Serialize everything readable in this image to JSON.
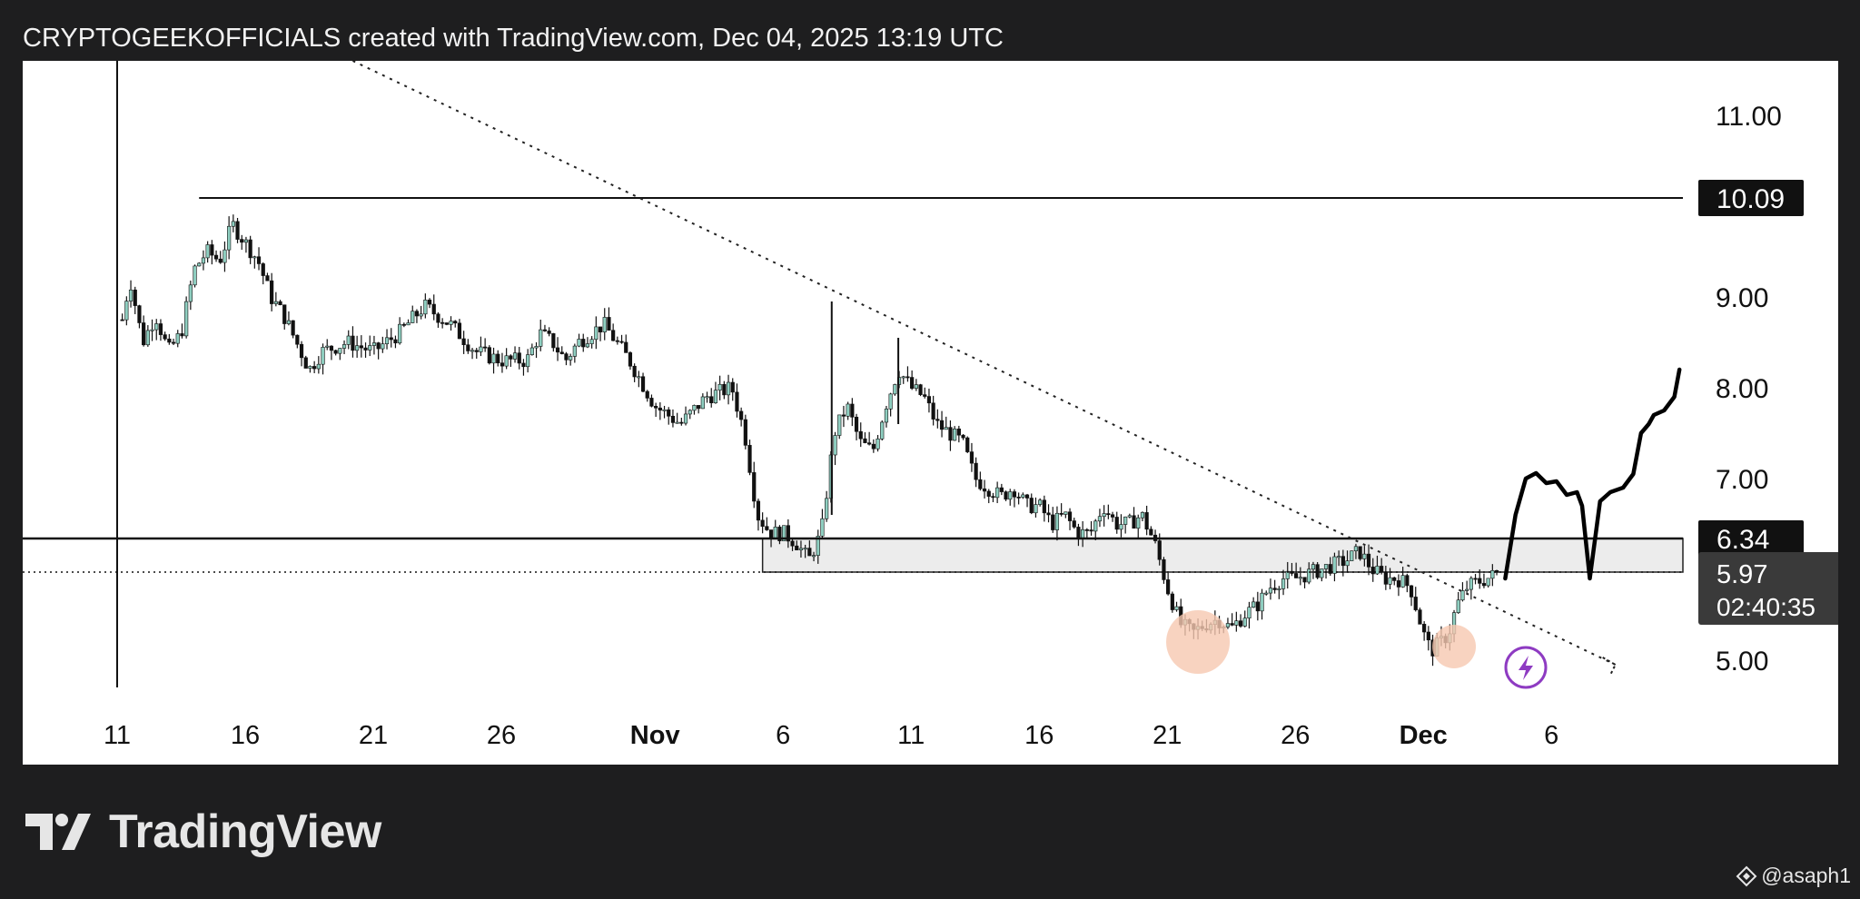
{
  "header": {
    "caption": "CRYPTOGEEKOFFICIALS created with TradingView.com, Dec 04, 2025 13:19 UTC"
  },
  "chart_data": {
    "type": "candlestick",
    "x_tick_labels": [
      {
        "label": "11",
        "day": 0,
        "bold": false
      },
      {
        "label": "16",
        "day": 5,
        "bold": false
      },
      {
        "label": "21",
        "day": 10,
        "bold": false
      },
      {
        "label": "26",
        "day": 15,
        "bold": false
      },
      {
        "label": "Nov",
        "day": 21,
        "bold": true
      },
      {
        "label": "6",
        "day": 26,
        "bold": false
      },
      {
        "label": "11",
        "day": 31,
        "bold": false
      },
      {
        "label": "16",
        "day": 36,
        "bold": false
      },
      {
        "label": "21",
        "day": 41,
        "bold": false
      },
      {
        "label": "26",
        "day": 46,
        "bold": false
      },
      {
        "label": "Dec",
        "day": 51,
        "bold": true
      },
      {
        "label": "6",
        "day": 56,
        "bold": false
      }
    ],
    "y_tick_labels": [
      "11.00",
      "9.00",
      "8.00",
      "7.00",
      "5.00"
    ],
    "y_ticks": [
      11.0,
      9.0,
      8.0,
      7.0,
      5.0
    ],
    "ylim": [
      4.6,
      11.6
    ],
    "xlim": [
      -3.8,
      60
    ],
    "price_path": [
      [
        0,
        11.6
      ],
      [
        0.05,
        11.2
      ],
      [
        0.1,
        8.6
      ],
      [
        0.5,
        9.2
      ],
      [
        1,
        8.5
      ],
      [
        1.5,
        8.8
      ],
      [
        2,
        8.4
      ],
      [
        2.5,
        8.6
      ],
      [
        3,
        9.3
      ],
      [
        3.5,
        9.5
      ],
      [
        4,
        9.4
      ],
      [
        4.5,
        9.8
      ],
      [
        5,
        9.6
      ],
      [
        5.5,
        9.4
      ],
      [
        6,
        9.0
      ],
      [
        6.5,
        8.8
      ],
      [
        7,
        8.5
      ],
      [
        7.5,
        8.2
      ],
      [
        8,
        8.4
      ],
      [
        9,
        8.5
      ],
      [
        10,
        8.4
      ],
      [
        11,
        8.6
      ],
      [
        12,
        8.9
      ],
      [
        13,
        8.7
      ],
      [
        14,
        8.4
      ],
      [
        15,
        8.3
      ],
      [
        16,
        8.3
      ],
      [
        16.5,
        8.6
      ],
      [
        17,
        8.5
      ],
      [
        17.5,
        8.3
      ],
      [
        18,
        8.5
      ],
      [
        19,
        8.7
      ],
      [
        20,
        8.3
      ],
      [
        21,
        7.8
      ],
      [
        22,
        7.6
      ],
      [
        23,
        7.9
      ],
      [
        24,
        8.0
      ],
      [
        24.5,
        7.5
      ],
      [
        25,
        6.6
      ],
      [
        25.5,
        6.4
      ],
      [
        26,
        6.4
      ],
      [
        26.5,
        6.3
      ],
      [
        27,
        6.1
      ],
      [
        27.5,
        6.4
      ],
      [
        28,
        7.5
      ],
      [
        28.5,
        7.8
      ],
      [
        29,
        7.4
      ],
      [
        29.5,
        7.3
      ],
      [
        30,
        7.8
      ],
      [
        30.5,
        8.2
      ],
      [
        31,
        8.0
      ],
      [
        31.5,
        7.9
      ],
      [
        32,
        7.6
      ],
      [
        33,
        7.4
      ],
      [
        33.5,
        7.0
      ],
      [
        34,
        6.9
      ],
      [
        34.5,
        6.8
      ],
      [
        35,
        6.9
      ],
      [
        35.5,
        6.7
      ],
      [
        36,
        6.7
      ],
      [
        36.5,
        6.5
      ],
      [
        37,
        6.6
      ],
      [
        37.5,
        6.4
      ],
      [
        38,
        6.4
      ],
      [
        38.5,
        6.7
      ],
      [
        39,
        6.5
      ],
      [
        39.5,
        6.5
      ],
      [
        40,
        6.6
      ],
      [
        40.5,
        6.3
      ],
      [
        41,
        5.8
      ],
      [
        41.5,
        5.4
      ],
      [
        42,
        5.3
      ],
      [
        42.5,
        5.4
      ],
      [
        43,
        5.45
      ],
      [
        43.5,
        5.35
      ],
      [
        44,
        5.5
      ],
      [
        44.5,
        5.6
      ],
      [
        45,
        5.8
      ],
      [
        45.5,
        5.9
      ],
      [
        46,
        5.9
      ],
      [
        47,
        6.0
      ],
      [
        48,
        6.1
      ],
      [
        48.5,
        6.2
      ],
      [
        49,
        6.0
      ],
      [
        49.5,
        5.9
      ],
      [
        50,
        5.9
      ],
      [
        50.5,
        5.8
      ],
      [
        51,
        5.3
      ],
      [
        51.3,
        5.1
      ],
      [
        51.7,
        5.2
      ],
      [
        52,
        5.3
      ],
      [
        52.3,
        5.6
      ],
      [
        52.7,
        5.8
      ],
      [
        53,
        5.85
      ],
      [
        53.5,
        5.9
      ],
      [
        54,
        5.97
      ]
    ],
    "wick_spikes": [
      {
        "x": 0.0,
        "low": 4.7,
        "high": 11.6
      },
      {
        "x": 27.9,
        "low": 6.6,
        "high": 8.95
      },
      {
        "x": 30.5,
        "low": 7.6,
        "high": 8.55
      }
    ],
    "horizontal_levels": [
      {
        "name": "resistance-top",
        "price": 10.09,
        "label": "10.09",
        "from_day": 3.2
      },
      {
        "name": "resistance-zone-top",
        "price": 6.34,
        "label": "6.34",
        "from_day": -4
      }
    ],
    "support_zone": {
      "top": 6.34,
      "bottom": 5.97,
      "from_day": 25.2
    },
    "current_price": {
      "price": 5.97,
      "label": "5.97",
      "countdown": "02:40:35"
    },
    "trendline": {
      "from": [
        9.2,
        11.6
      ],
      "to": [
        58.5,
        4.95
      ]
    },
    "projection_path": [
      [
        54.2,
        5.9
      ],
      [
        54.6,
        6.6
      ],
      [
        55.0,
        7.0
      ],
      [
        55.4,
        7.06
      ],
      [
        55.8,
        6.95
      ],
      [
        56.2,
        6.97
      ],
      [
        56.6,
        6.82
      ],
      [
        57.0,
        6.85
      ],
      [
        57.2,
        6.7
      ],
      [
        57.5,
        5.9
      ],
      [
        57.9,
        6.75
      ],
      [
        58.3,
        6.85
      ],
      [
        58.8,
        6.9
      ],
      [
        59.2,
        7.05
      ],
      [
        59.5,
        7.5
      ],
      [
        59.8,
        7.6
      ],
      [
        60.0,
        7.7
      ],
      [
        60.4,
        7.75
      ],
      [
        60.8,
        7.9
      ],
      [
        61.0,
        8.2
      ]
    ],
    "highlight_circles": [
      {
        "day": 42.2,
        "price": 5.2
      },
      {
        "day": 52.2,
        "price": 5.15
      }
    ],
    "lightning_marker": {
      "day": 55.0,
      "price": 4.92
    }
  },
  "colors": {
    "background": "#1e1e1f",
    "panel": "#ffffff",
    "candle_up": "#8fcfc1",
    "candle_down": "#111111",
    "circle_fill": "#f6c8b0",
    "lightning": "#8e3bc2",
    "label_bg": "#111111",
    "label_gray_bg": "#3a3a3a"
  },
  "branding": {
    "wordmark": "TradingView",
    "logo_icon": "tradingview-logo-icon"
  },
  "watermark": {
    "icon": "binance-diamond-icon",
    "text": "@asaph1"
  }
}
